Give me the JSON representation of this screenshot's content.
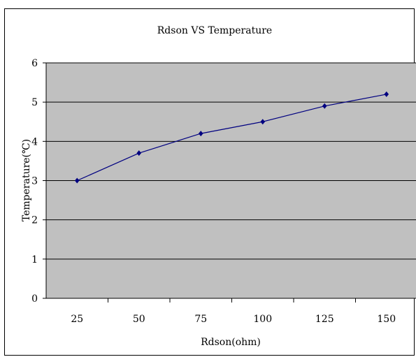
{
  "chart_data": {
    "type": "line",
    "title": "Rdson VS Temperature",
    "xlabel": "Rdson(ohm)",
    "ylabel": "Temperature(℃)",
    "categories": [
      "25",
      "50",
      "75",
      "100",
      "125",
      "150"
    ],
    "series": [
      {
        "values": [
          3.0,
          3.7,
          4.2,
          4.5,
          4.9,
          5.2
        ]
      }
    ],
    "ylim": [
      0,
      6
    ],
    "yticks": [
      "0",
      "1",
      "2",
      "3",
      "4",
      "5",
      "6"
    ],
    "grid": true,
    "legend": "none",
    "colors": {
      "plot_background": "#c0c0c0",
      "series": "#000080",
      "gridline": "#000000"
    }
  }
}
